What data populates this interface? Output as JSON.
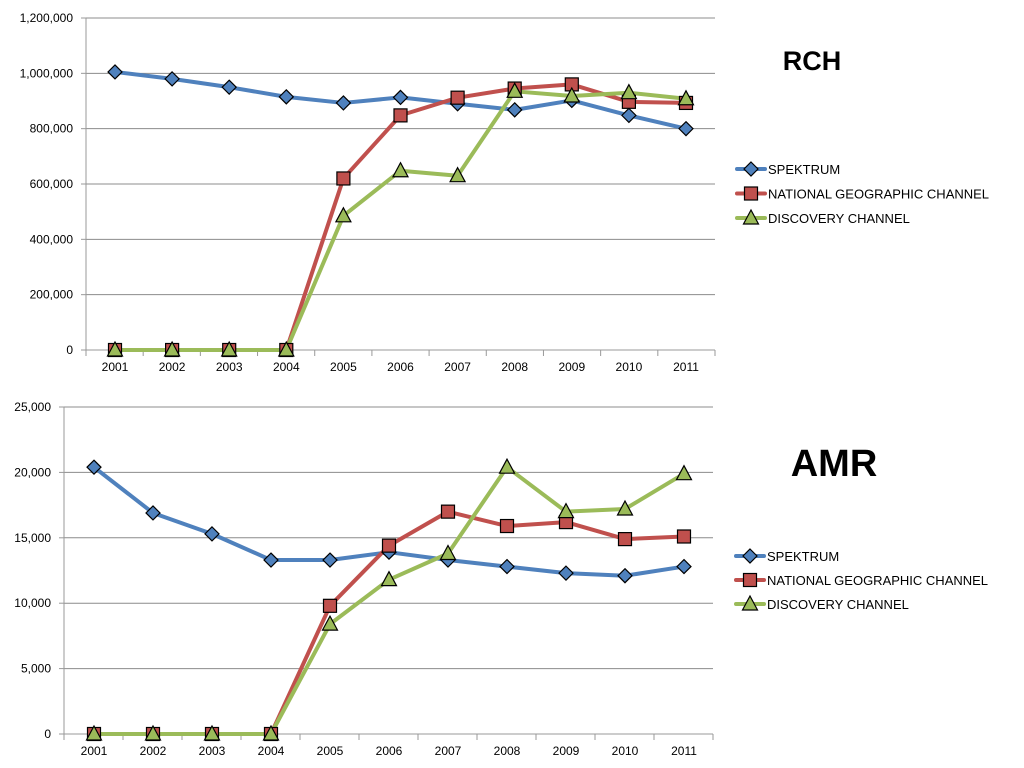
{
  "chart_data": [
    {
      "type": "line",
      "title": "RCH",
      "categories": [
        "2001",
        "2002",
        "2003",
        "2004",
        "2005",
        "2006",
        "2007",
        "2008",
        "2009",
        "2010",
        "2011"
      ],
      "ylim": [
        0,
        1200000
      ],
      "yticks": [
        "0",
        "200,000",
        "400,000",
        "600,000",
        "800,000",
        "1,000,000",
        "1,200,000"
      ],
      "ytick_values": [
        0,
        200000,
        400000,
        600000,
        800000,
        1000000,
        1200000
      ],
      "grid": true,
      "legend_position": "right",
      "series": [
        {
          "name": "SPEKTRUM",
          "color": "#4F81BD",
          "marker": "diamond",
          "values": [
            1005000,
            980000,
            950000,
            915000,
            893000,
            913000,
            890000,
            868000,
            902000,
            848000,
            800000
          ]
        },
        {
          "name": "NATIONAL GEOGRAPHIC CHANNEL",
          "color": "#C0504D",
          "marker": "square",
          "values": [
            0,
            0,
            0,
            0,
            620000,
            848000,
            912000,
            945000,
            960000,
            897000,
            893000
          ]
        },
        {
          "name": "DISCOVERY CHANNEL",
          "color": "#9BBB59",
          "marker": "triangle",
          "values": [
            0,
            0,
            0,
            0,
            485000,
            648000,
            630000,
            935000,
            918000,
            930000,
            908000
          ]
        }
      ]
    },
    {
      "type": "line",
      "title": "AMR",
      "categories": [
        "2001",
        "2002",
        "2003",
        "2004",
        "2005",
        "2006",
        "2007",
        "2008",
        "2009",
        "2010",
        "2011"
      ],
      "ylim": [
        0,
        25000
      ],
      "yticks": [
        "0",
        "5,000",
        "10,000",
        "15,000",
        "20,000",
        "25,000"
      ],
      "ytick_values": [
        0,
        5000,
        10000,
        15000,
        20000,
        25000
      ],
      "grid": true,
      "legend_position": "right",
      "series": [
        {
          "name": "SPEKTRUM",
          "color": "#4F81BD",
          "marker": "diamond",
          "values": [
            20400,
            16900,
            15300,
            13300,
            13300,
            13900,
            13300,
            12800,
            12300,
            12100,
            12800
          ]
        },
        {
          "name": "NATIONAL GEOGRAPHIC CHANNEL",
          "color": "#C0504D",
          "marker": "square",
          "values": [
            0,
            0,
            0,
            0,
            9800,
            14400,
            17000,
            15900,
            16200,
            14900,
            15100
          ]
        },
        {
          "name": "DISCOVERY CHANNEL",
          "color": "#9BBB59",
          "marker": "triangle",
          "values": [
            0,
            0,
            0,
            0,
            8400,
            11800,
            13800,
            20400,
            17000,
            17200,
            19900
          ]
        }
      ]
    }
  ]
}
